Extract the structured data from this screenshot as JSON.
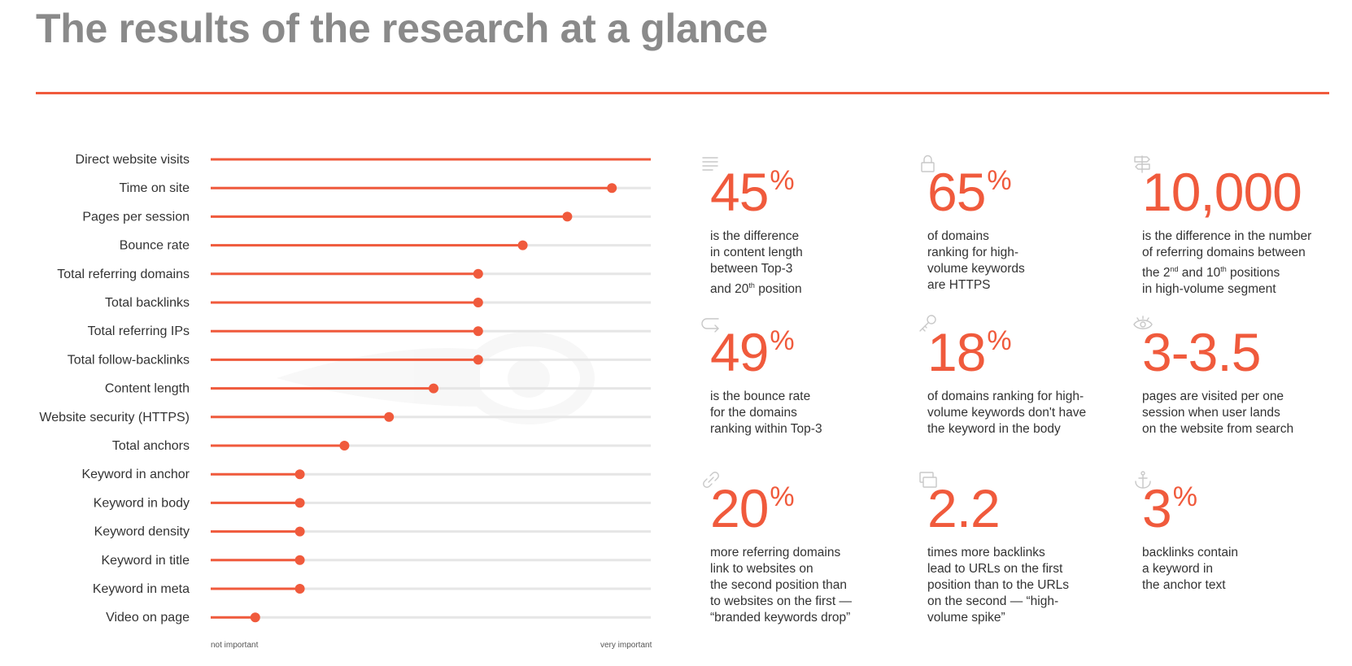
{
  "title": "The results of the research at a glance",
  "colors": {
    "accent": "#f05a3c",
    "track": "#e6e6e6",
    "title": "#8a8a8a",
    "text": "#333333"
  },
  "chart_data": {
    "type": "lollipop",
    "orientation": "horizontal",
    "categories": [
      "Direct website visits",
      "Time on site",
      "Pages per session",
      "Bounce rate",
      "Total referring domains",
      "Total backlinks",
      "Total referring IPs",
      "Total follow-backlinks",
      "Content length",
      "Website security (HTTPS)",
      "Total anchors",
      "Keyword in anchor",
      "Keyword in body",
      "Keyword density",
      "Keyword in title",
      "Keyword in meta",
      "Video on page"
    ],
    "values": [
      1.0,
      0.9,
      0.8,
      0.7,
      0.6,
      0.6,
      0.6,
      0.6,
      0.5,
      0.4,
      0.3,
      0.2,
      0.2,
      0.2,
      0.2,
      0.2,
      0.1
    ],
    "xrange": [
      0,
      1
    ],
    "axis_min_label": "not important",
    "axis_max_label": "very important"
  },
  "stats": [
    {
      "icon": "text-lines-icon",
      "number": "45",
      "suffix": "%",
      "lines": [
        "is the difference",
        "in content length",
        "between Top-3",
        "and 20|th| position"
      ]
    },
    {
      "icon": "lock-icon",
      "number": "65",
      "suffix": "%",
      "lines": [
        "of domains",
        "ranking for high-",
        "volume keywords",
        "are HTTPS"
      ]
    },
    {
      "icon": "signpost-icon",
      "number": "10,000",
      "suffix": "",
      "lines": [
        "is the difference in the number",
        "of referring domains between",
        "the 2|nd| and 10|th| positions",
        "in high-volume segment"
      ]
    },
    {
      "icon": "return-arrow-icon",
      "number": "49",
      "suffix": "%",
      "lines": [
        "is the bounce rate",
        "for the domains",
        "ranking within Top-3"
      ]
    },
    {
      "icon": "key-icon",
      "number": "18",
      "suffix": "%",
      "lines": [
        "of domains ranking for high-",
        "volume keywords don't have",
        "the keyword in the body"
      ]
    },
    {
      "icon": "eye-icon",
      "number": "3-3.5",
      "suffix": "",
      "lines": [
        "pages are visited per one",
        "session when user lands",
        "on the website from search"
      ]
    },
    {
      "icon": "link-icon",
      "number": "20",
      "suffix": "%",
      "lines": [
        "more referring domains",
        "link to websites on",
        "the second position than",
        "to websites on the first —",
        "“branded keywords drop”"
      ]
    },
    {
      "icon": "layers-icon",
      "number": "2.2",
      "suffix": "",
      "lines": [
        "times more backlinks",
        "lead to URLs on the first",
        "position than to the URLs",
        "on the second — “high-",
        "volume spike”"
      ]
    },
    {
      "icon": "anchor-icon",
      "number": "3",
      "suffix": "%",
      "lines": [
        "backlinks contain",
        "a keyword in",
        "the anchor text"
      ]
    }
  ]
}
